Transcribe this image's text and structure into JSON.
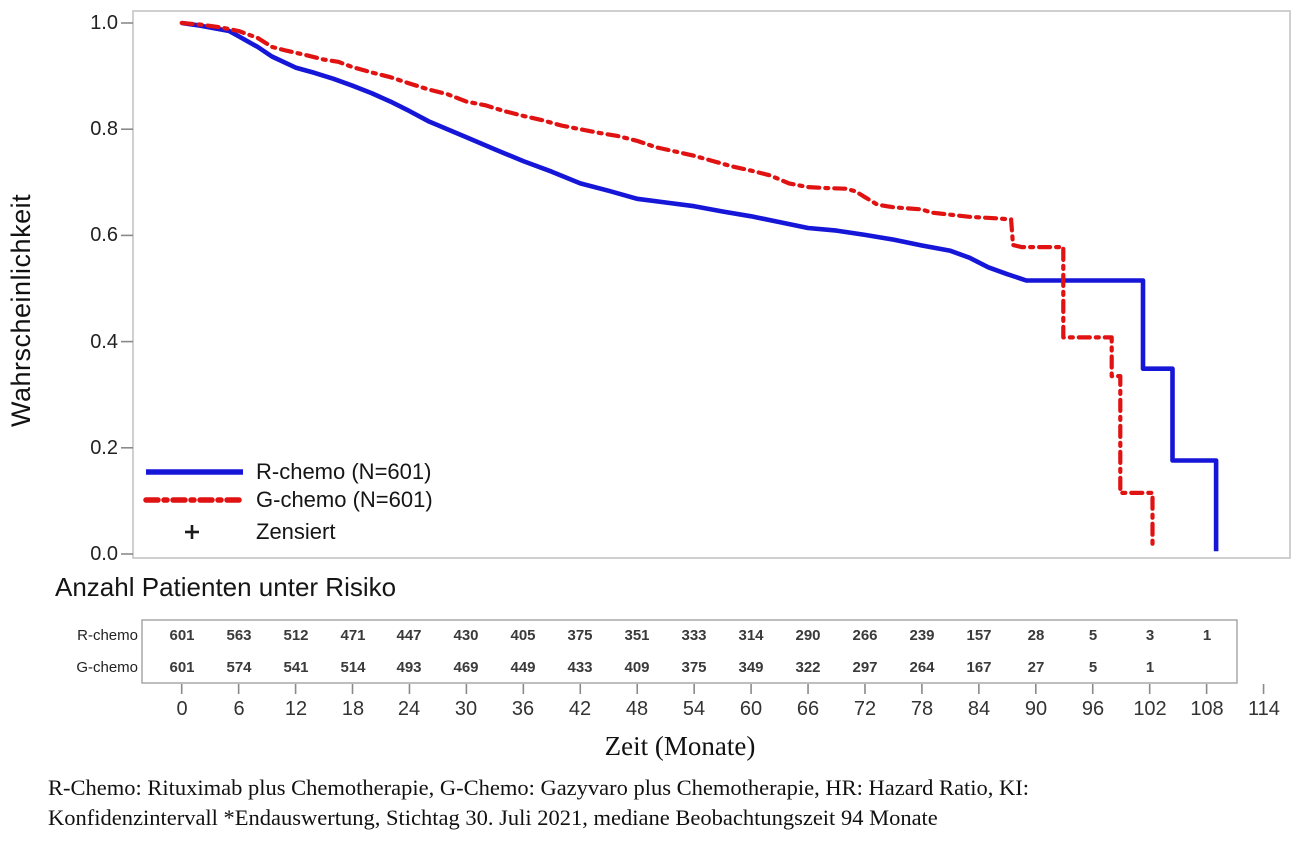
{
  "chart_data": {
    "type": "line",
    "subtype": "kaplan-meier-survival",
    "title": "",
    "xlabel": "Zeit (Monate)",
    "ylabel": "Wahrscheinlichkeit",
    "xlim": [
      0,
      114
    ],
    "ylim": [
      0.0,
      1.0
    ],
    "grid": "off",
    "legend_position": "inside-lower-left",
    "x_ticks": [
      0,
      6,
      12,
      18,
      24,
      30,
      36,
      42,
      48,
      54,
      60,
      66,
      72,
      78,
      84,
      90,
      96,
      102,
      108,
      114
    ],
    "y_tick_labels": [
      "1.0",
      "0.8",
      "0.6",
      "0.4",
      "0.2",
      "0.0"
    ],
    "y_tick_values": [
      1.0,
      0.8,
      0.6,
      0.4,
      0.2,
      0.0
    ],
    "censored_label": "Zensiert",
    "colors": {
      "r_chemo": "#1616d9",
      "g_chemo": "#e11212",
      "censored": "#1a1a1a",
      "frame": "#c4c4c4",
      "tick": "#8a8a8a"
    },
    "series": [
      {
        "name": "R-chemo (N=601)",
        "color": "#1616d9",
        "style": "solid",
        "points": [
          [
            0,
            1.0
          ],
          [
            2,
            0.995
          ],
          [
            5,
            0.985
          ],
          [
            6,
            0.975
          ],
          [
            8,
            0.955
          ],
          [
            9.5,
            0.937
          ],
          [
            12,
            0.916
          ],
          [
            14,
            0.906
          ],
          [
            16,
            0.895
          ],
          [
            18,
            0.882
          ],
          [
            20,
            0.868
          ],
          [
            22,
            0.852
          ],
          [
            24,
            0.834
          ],
          [
            26,
            0.815
          ],
          [
            28,
            0.8
          ],
          [
            30,
            0.785
          ],
          [
            33,
            0.762
          ],
          [
            36,
            0.74
          ],
          [
            39,
            0.72
          ],
          [
            42,
            0.698
          ],
          [
            45,
            0.684
          ],
          [
            48,
            0.669
          ],
          [
            51,
            0.662
          ],
          [
            54,
            0.655
          ],
          [
            57,
            0.645
          ],
          [
            60,
            0.636
          ],
          [
            63,
            0.625
          ],
          [
            66,
            0.614
          ],
          [
            69,
            0.609
          ],
          [
            72,
            0.601
          ],
          [
            75,
            0.592
          ],
          [
            78,
            0.581
          ],
          [
            81,
            0.571
          ],
          [
            83,
            0.558
          ],
          [
            85,
            0.54
          ],
          [
            87,
            0.527
          ],
          [
            88.5,
            0.518
          ],
          [
            89,
            0.515
          ],
          [
            101.3,
            0.515
          ],
          [
            101.3,
            0.349
          ],
          [
            104.4,
            0.349
          ],
          [
            104.4,
            0.176
          ],
          [
            109,
            0.176
          ],
          [
            109,
            0.005
          ]
        ]
      },
      {
        "name": "G-chemo (N=601)",
        "color": "#e11212",
        "style": "dash-dot",
        "points": [
          [
            0,
            1.0
          ],
          [
            2,
            0.997
          ],
          [
            4,
            0.992
          ],
          [
            6,
            0.985
          ],
          [
            8,
            0.972
          ],
          [
            9.5,
            0.955
          ],
          [
            11,
            0.948
          ],
          [
            13,
            0.94
          ],
          [
            15,
            0.931
          ],
          [
            16.5,
            0.927
          ],
          [
            18,
            0.917
          ],
          [
            20,
            0.907
          ],
          [
            22,
            0.898
          ],
          [
            24,
            0.886
          ],
          [
            26,
            0.875
          ],
          [
            28,
            0.866
          ],
          [
            30,
            0.852
          ],
          [
            32,
            0.845
          ],
          [
            34,
            0.834
          ],
          [
            36,
            0.825
          ],
          [
            38,
            0.817
          ],
          [
            40,
            0.807
          ],
          [
            42,
            0.8
          ],
          [
            44,
            0.793
          ],
          [
            46,
            0.787
          ],
          [
            48,
            0.778
          ],
          [
            50,
            0.766
          ],
          [
            52,
            0.758
          ],
          [
            54,
            0.75
          ],
          [
            56,
            0.74
          ],
          [
            58,
            0.73
          ],
          [
            60,
            0.722
          ],
          [
            62,
            0.713
          ],
          [
            64,
            0.698
          ],
          [
            66,
            0.691
          ],
          [
            68,
            0.689
          ],
          [
            70,
            0.688
          ],
          [
            71,
            0.683
          ],
          [
            72,
            0.672
          ],
          [
            73.3,
            0.658
          ],
          [
            75,
            0.653
          ],
          [
            78,
            0.649
          ],
          [
            79,
            0.643
          ],
          [
            81,
            0.639
          ],
          [
            83,
            0.635
          ],
          [
            86,
            0.632
          ],
          [
            87.4,
            0.63
          ],
          [
            87.6,
            0.582
          ],
          [
            88.5,
            0.578
          ],
          [
            92.9,
            0.578
          ],
          [
            92.9,
            0.408
          ],
          [
            98,
            0.408
          ],
          [
            98,
            0.335
          ],
          [
            98.9,
            0.335
          ],
          [
            98.9,
            0.115
          ],
          [
            102.3,
            0.115
          ],
          [
            102.3,
            0.01
          ]
        ]
      }
    ],
    "risk_table": {
      "title": "Anzahl Patienten unter Risiko",
      "rows": [
        {
          "label": "R-chemo",
          "values": [
            601,
            563,
            512,
            471,
            447,
            430,
            405,
            375,
            351,
            333,
            314,
            290,
            266,
            239,
            157,
            28,
            5,
            3,
            1
          ]
        },
        {
          "label": "G-chemo",
          "values": [
            601,
            574,
            541,
            514,
            493,
            469,
            449,
            433,
            409,
            375,
            349,
            322,
            297,
            264,
            167,
            27,
            5,
            1
          ]
        }
      ]
    }
  },
  "footnote": {
    "line1": "R-Chemo: Rituximab plus Chemotherapie, G-Chemo: Gazyvaro plus Chemotherapie, HR: Hazard Ratio, KI:",
    "line2": "Konfidenzintervall *Endauswertung, Stichtag 30. Juli 2021, mediane Beobachtungszeit 94 Monate"
  }
}
